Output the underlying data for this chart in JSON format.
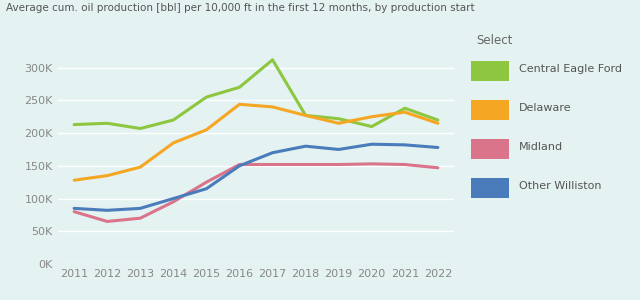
{
  "title": "Average cum. oil production [bbl] per 10,000 ft in the first 12 months, by production start",
  "years": [
    2011,
    2012,
    2013,
    2014,
    2015,
    2016,
    2017,
    2018,
    2019,
    2020,
    2021,
    2022
  ],
  "series": {
    "Central Eagle Ford": {
      "values": [
        213000,
        215000,
        207000,
        220000,
        255000,
        270000,
        312000,
        227000,
        222000,
        210000,
        238000,
        220000
      ],
      "color": "#8dc63f"
    },
    "Delaware": {
      "values": [
        128000,
        135000,
        148000,
        185000,
        205000,
        244000,
        240000,
        227000,
        215000,
        225000,
        232000,
        215000
      ],
      "color": "#f5a623"
    },
    "Midland": {
      "values": [
        80000,
        65000,
        70000,
        95000,
        125000,
        152000,
        152000,
        152000,
        152000,
        153000,
        152000,
        147000
      ],
      "color": "#d9748a"
    },
    "Other Williston": {
      "values": [
        85000,
        82000,
        85000,
        100000,
        115000,
        150000,
        170000,
        180000,
        175000,
        183000,
        182000,
        178000
      ],
      "color": "#4a7cbb"
    }
  },
  "ylim": [
    0,
    330000
  ],
  "yticks": [
    0,
    50000,
    100000,
    150000,
    200000,
    250000,
    300000
  ],
  "background_color": "#e4f2f2",
  "legend_title": "Select",
  "title_fontsize": 7.5,
  "legend_fontsize": 8,
  "tick_fontsize": 8,
  "linewidth": 2.2
}
